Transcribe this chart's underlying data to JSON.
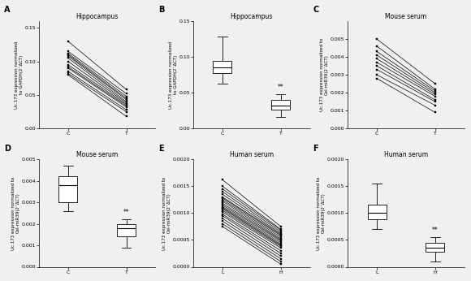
{
  "panel_A": {
    "label": "A",
    "title": "Hippocampus",
    "xlabel_C": "C",
    "xlabel_T": "T",
    "ylabel": "Uc.173 expression normalized\nto GAPDH(2⁻ΔCT)",
    "ylim": [
      0.0,
      0.16
    ],
    "yticks": [
      0.0,
      0.05,
      0.1,
      0.15
    ],
    "ytick_labels": [
      "0.00",
      "0.05",
      "0.10",
      "0.15"
    ],
    "C_values": [
      0.13,
      0.115,
      0.112,
      0.11,
      0.108,
      0.105,
      0.1,
      0.095,
      0.092,
      0.09,
      0.085,
      0.082,
      0.08
    ],
    "T_values": [
      0.058,
      0.052,
      0.048,
      0.045,
      0.043,
      0.04,
      0.038,
      0.036,
      0.034,
      0.032,
      0.028,
      0.025,
      0.018
    ]
  },
  "panel_B": {
    "label": "B",
    "title": "Hippocampus",
    "ylabel": "Uc.173 expression normalized\nto GAPDH(2⁻ΔCT)",
    "ylim": [
      0.0,
      0.15
    ],
    "yticks": [
      0.0,
      0.05,
      0.1,
      0.15
    ],
    "ytick_labels": [
      "0.00",
      "0.05",
      "0.10",
      "0.15"
    ],
    "xlabel_C": "C",
    "xlabel_T": "T",
    "C_box": {
      "median": 0.085,
      "q1": 0.077,
      "q3": 0.095,
      "whisker_low": 0.063,
      "whisker_high": 0.128
    },
    "T_box": {
      "median": 0.032,
      "q1": 0.026,
      "q3": 0.04,
      "whisker_low": 0.016,
      "whisker_high": 0.048
    },
    "sig_label": "**"
  },
  "panel_C": {
    "label": "C",
    "title": "Mouse serum",
    "xlabel_C": "C",
    "xlabel_T": "T",
    "ylabel": "Uc.173 expression normalized to\nCel-miR39(2⁻ΔCT)",
    "ylim": [
      0.0,
      0.006
    ],
    "yticks": [
      0.0,
      0.001,
      0.002,
      0.003,
      0.004,
      0.005
    ],
    "ytick_labels": [
      "0.000",
      "0.001",
      "0.002",
      "0.003",
      "0.004",
      "0.005"
    ],
    "C_values": [
      0.005,
      0.0046,
      0.0043,
      0.0041,
      0.0039,
      0.0037,
      0.0035,
      0.0033,
      0.003,
      0.0028
    ],
    "T_values": [
      0.0025,
      0.0022,
      0.0021,
      0.002,
      0.0019,
      0.0018,
      0.0016,
      0.0015,
      0.0013,
      0.0009
    ]
  },
  "panel_D": {
    "label": "D",
    "title": "Mouse serum",
    "ylabel": "Uc.173 expression normalized to\nCel-miR39(2⁻ΔCT)",
    "ylim": [
      0.0,
      0.005
    ],
    "yticks": [
      0.0,
      0.001,
      0.002,
      0.003,
      0.004,
      0.005
    ],
    "ytick_labels": [
      "0.000",
      "0.001",
      "0.002",
      "0.003",
      "0.004",
      "0.005"
    ],
    "xlabel_C": "C",
    "xlabel_T": "T",
    "C_box": {
      "median": 0.0038,
      "q1": 0.003,
      "q3": 0.0042,
      "whisker_low": 0.0026,
      "whisker_high": 0.0047
    },
    "T_box": {
      "median": 0.0018,
      "q1": 0.0014,
      "q3": 0.002,
      "whisker_low": 0.0009,
      "whisker_high": 0.0022
    },
    "sig_label": "**"
  },
  "panel_E": {
    "label": "E",
    "title": "Human serum",
    "xlabel_L": "L",
    "xlabel_H": "H",
    "ylabel": "Uc.173 expression normalized to\nCel-miR39(2⁻ΔCT)",
    "ylim": [
      0.0,
      0.002
    ],
    "yticks": [
      0.0,
      0.0005,
      0.001,
      0.0015,
      0.002
    ],
    "ytick_labels": [
      "0.0000",
      "0.0005",
      "0.0010",
      "0.0015",
      "0.0020"
    ],
    "L_values": [
      0.00162,
      0.0015,
      0.00145,
      0.0014,
      0.00135,
      0.0013,
      0.00128,
      0.00125,
      0.00122,
      0.00118,
      0.00115,
      0.00112,
      0.0011,
      0.00108,
      0.00105,
      0.00102,
      0.00098,
      0.00095,
      0.0009,
      0.00085,
      0.0008,
      0.00075
    ],
    "H_values": [
      0.00075,
      0.0007,
      0.00068,
      0.00065,
      0.00062,
      0.0006,
      0.00058,
      0.00055,
      0.00052,
      0.0005,
      0.00048,
      0.00045,
      0.00042,
      0.0004,
      0.00038,
      0.00035,
      0.0003,
      0.00025,
      0.0002,
      0.00015,
      0.0001,
      5e-05
    ]
  },
  "panel_F": {
    "label": "F",
    "title": "Human serum",
    "ylabel": "Uc.173 expression normalized to\nCel-miR39(2⁻ΔCT)",
    "ylim": [
      0.0,
      0.002
    ],
    "yticks": [
      0.0,
      0.0005,
      0.001,
      0.0015,
      0.002
    ],
    "ytick_labels": [
      "0.0000",
      "0.0005",
      "0.0010",
      "0.0015",
      "0.0020"
    ],
    "xlabel_L": "L",
    "xlabel_H": "H",
    "L_box": {
      "median": 0.001,
      "q1": 0.00088,
      "q3": 0.00115,
      "whisker_low": 0.0007,
      "whisker_high": 0.00155
    },
    "H_box": {
      "median": 0.00035,
      "q1": 0.00028,
      "q3": 0.00045,
      "whisker_low": 0.0001,
      "whisker_high": 0.00055
    },
    "sig_label": "**"
  },
  "line_color": "#000000",
  "box_color": "#ffffff",
  "box_edge_color": "#000000",
  "marker": "s",
  "marker_size": 1.8,
  "line_width": 0.5,
  "font_size_title": 5.5,
  "font_size_label": 4.0,
  "font_size_tick": 4.5,
  "font_size_panel": 7,
  "font_size_sig": 5.5,
  "box_width": 0.32,
  "bg_color": "#f0f0f0"
}
